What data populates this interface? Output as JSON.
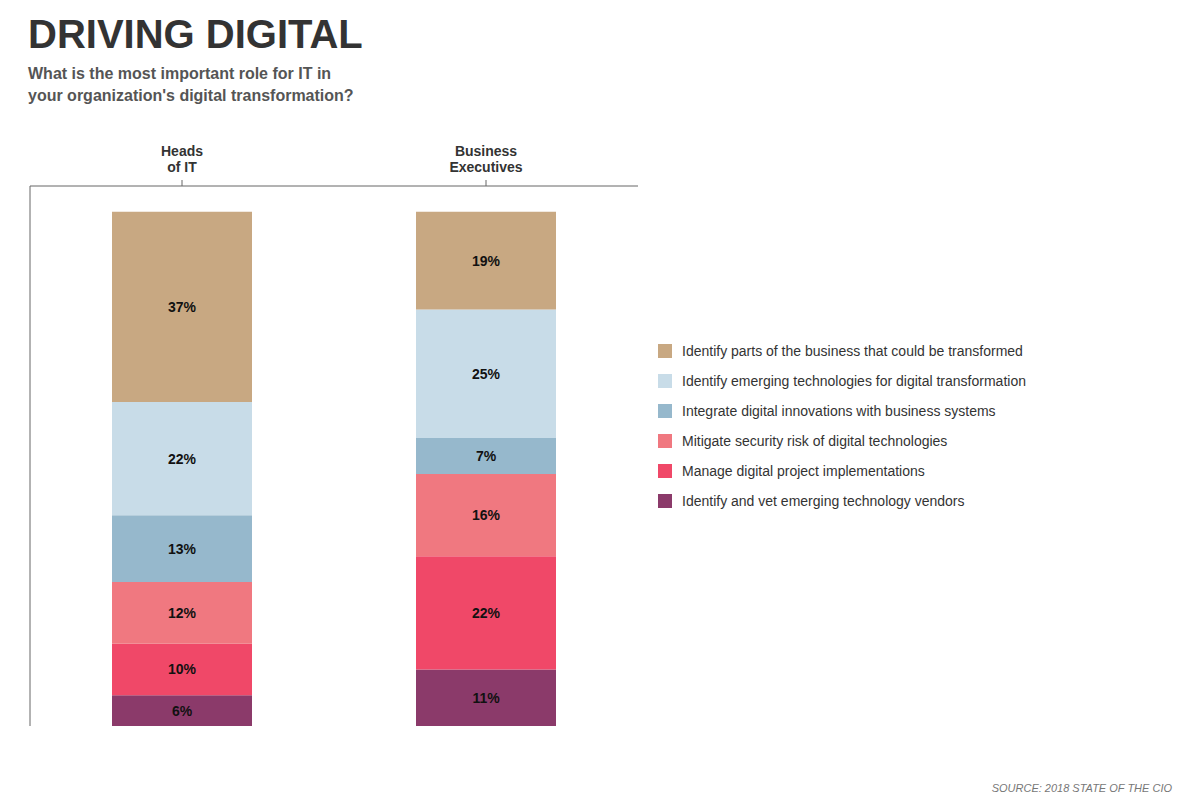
{
  "chart_data": {
    "type": "bar",
    "stacked": true,
    "data_labels": true,
    "tick_labels": "x",
    "legend": "right",
    "title": "DRIVING DIGITAL",
    "subtitle": "What is the most important role for IT in\nyour organization's digital transformation?",
    "annotations": [
      "SOURCE: 2018 STATE OF THE CIO"
    ],
    "categories": [
      "Heads\nof IT",
      "Business\nExecutives"
    ],
    "ylim": [
      0,
      105
    ],
    "series": [
      {
        "name": "Identify parts of the business that could be transformed",
        "color": "#c8a882",
        "values": [
          37,
          19
        ],
        "value_labels": [
          "37%",
          "19%"
        ]
      },
      {
        "name": "Identify emerging technologies for digital transformation",
        "color": "#c8dce8",
        "values": [
          22,
          25
        ],
        "value_labels": [
          "22%",
          "25%"
        ]
      },
      {
        "name": "Integrate digital innovations with business systems",
        "color": "#96b8cc",
        "values": [
          13,
          7
        ],
        "value_labels": [
          "13%",
          "7%"
        ]
      },
      {
        "name": "Mitigate security risk of digital technologies",
        "color": "#f07880",
        "values": [
          12,
          16
        ],
        "value_labels": [
          "12%",
          "16%"
        ]
      },
      {
        "name": "Manage digital project implementations",
        "color": "#f04868",
        "values": [
          10,
          22
        ],
        "value_labels": [
          "10%",
          "22%"
        ]
      },
      {
        "name": "Identify and vet emerging technology vendors",
        "color": "#8b3a6a",
        "values": [
          6,
          11
        ],
        "value_labels": [
          "6%",
          "11%"
        ]
      }
    ]
  }
}
